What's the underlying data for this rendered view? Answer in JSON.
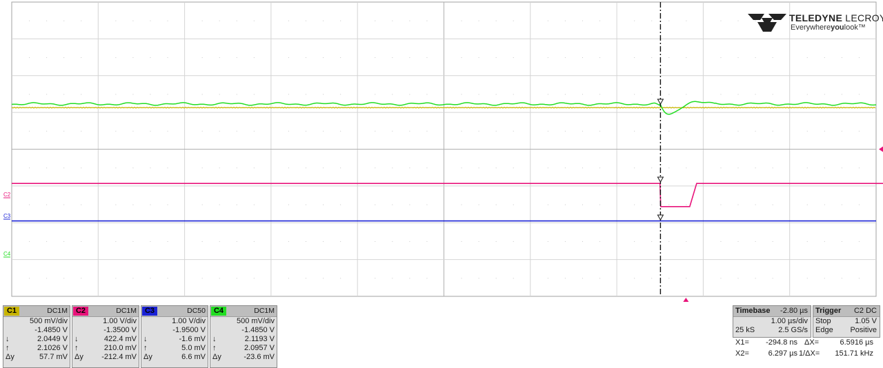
{
  "brand": {
    "line1_bold": "TELEDYNE",
    "line1_light": " LECROY",
    "tagline_pre": "Everywhere",
    "tagline_bold": "you",
    "tagline_post": "look",
    "tm": "™"
  },
  "chart_data": {
    "type": "line",
    "title": "",
    "xlabel": "",
    "ylabel": "",
    "grid": true,
    "divisions": {
      "x": 10,
      "y": 8
    },
    "cursors": [
      {
        "name": "X1",
        "time_us": -0.2948,
        "style": "dash-dot"
      },
      {
        "name": "X2",
        "time_us": 6.297,
        "style": "dashed"
      }
    ],
    "trigger_time_us": 0,
    "series": [
      {
        "id": "C1",
        "color": "#c8b400",
        "description": "flat trace",
        "level_v": 2.05
      },
      {
        "id": "C2",
        "color": "#e8137a",
        "high_v": 0.42,
        "low_v": -0.21,
        "fall_times_us": [
          -0.3,
          6.29
        ],
        "rise_times_us": [
          0.06,
          6.65
        ]
      },
      {
        "id": "C3",
        "color": "#1a22d6",
        "level_v": 0.0
      },
      {
        "id": "C4",
        "color": "#22dd22",
        "level_v": 2.1,
        "dip_v": 1.9
      }
    ],
    "left_markers": [
      {
        "label": "C2",
        "color": "#e8137a"
      },
      {
        "label": "C3",
        "color": "#1a22d6"
      },
      {
        "label": "C4",
        "color": "#22dd22"
      }
    ]
  },
  "channels": [
    {
      "tag": "C1",
      "tag_color": "#c8b400",
      "coupling": "DC1M",
      "vdiv": "500 mV/div",
      "offset": "-1.4850 V",
      "down": "2.0449 V",
      "up": "2.1026 V",
      "dy": "57.7 mV"
    },
    {
      "tag": "C2",
      "tag_color": "#e8137a",
      "coupling": "DC1M",
      "vdiv": "1.00 V/div",
      "offset": "-1.3500 V",
      "down": "422.4 mV",
      "up": "210.0 mV",
      "dy": "-212.4 mV"
    },
    {
      "tag": "C3",
      "tag_color": "#1a22d6",
      "coupling": "DC50",
      "vdiv": "1.00 V/div",
      "offset": "-1.9500 V",
      "down": "-1.6 mV",
      "up": "5.0 mV",
      "dy": "6.6 mV"
    },
    {
      "tag": "C4",
      "tag_color": "#22dd22",
      "coupling": "DC1M",
      "vdiv": "500 mV/div",
      "offset": "-1.4850 V",
      "down": "2.1193 V",
      "up": "2.0957 V",
      "dy": "-23.6 mV"
    }
  ],
  "symbols": {
    "down": "↓",
    "up": "↑",
    "dy": "Δy"
  },
  "timebase": {
    "label": "Timebase",
    "delay": "-2.80 µs",
    "tdiv": "1.00 µs/div",
    "samples": "25 kS",
    "rate": "2.5 GS/s"
  },
  "trigger": {
    "label": "Trigger",
    "src": "C2 DC",
    "mode": "Stop",
    "level": "1.05 V",
    "type": "Edge",
    "slope": "Positive"
  },
  "measurements": {
    "x1_label": "X1=",
    "x1_value": "-294.8 ns",
    "dx_label": "ΔX=",
    "dx_value": "6.5916 µs",
    "x2_label": "X2=",
    "x2_value": "6.297 µs",
    "inv_label": "1/ΔX=",
    "inv_value": "151.71 kHz"
  }
}
